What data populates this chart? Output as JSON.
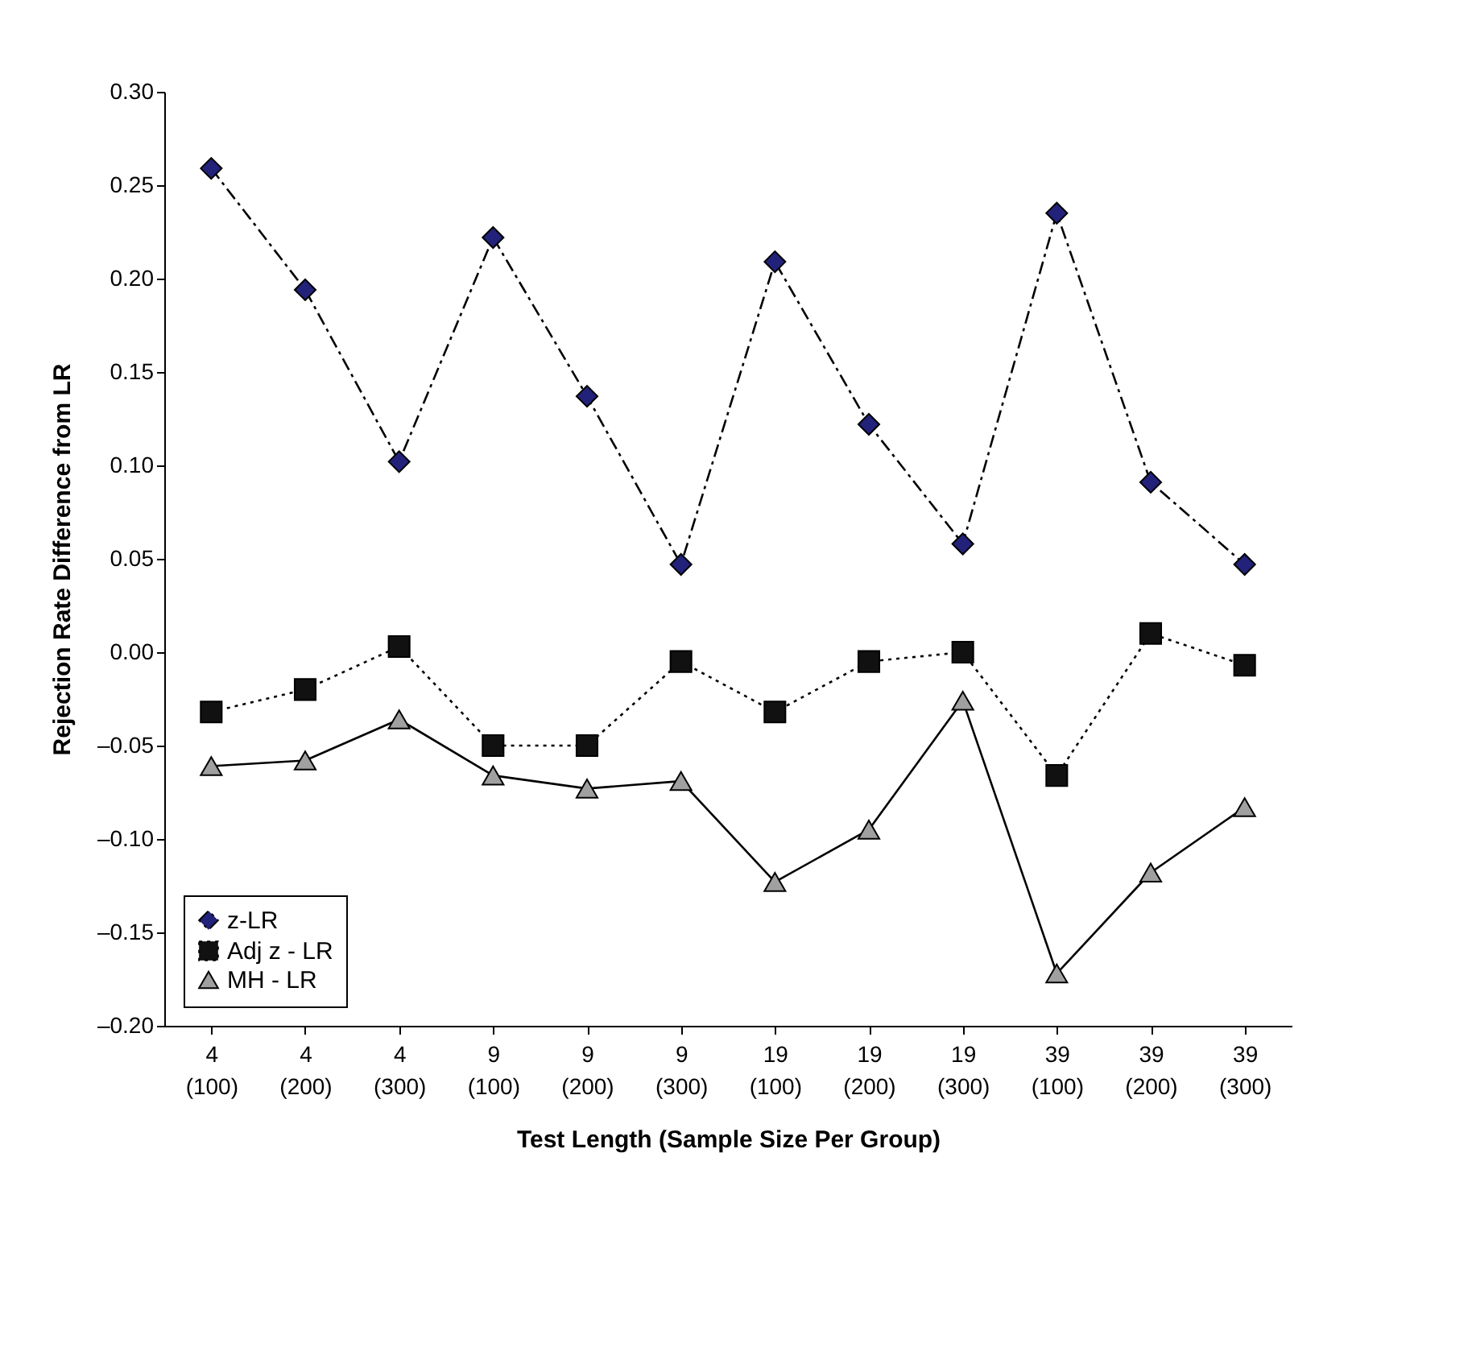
{
  "chart_data": {
    "type": "line",
    "xlabel": "Test Length (Sample Size Per Group)",
    "ylabel": "Rejection Rate Difference from LR",
    "categories": [
      "4\n(100)",
      "4\n(200)",
      "4\n(300)",
      "9\n(100)",
      "9\n(200)",
      "9\n(300)",
      "19\n(100)",
      "19\n(200)",
      "19\n(300)",
      "39\n(100)",
      "39\n(200)",
      "39\n(300)"
    ],
    "series": [
      {
        "name": "z-LR",
        "color": "#22227a",
        "marker": "diamond",
        "line_style": "dashed",
        "values": [
          0.259,
          0.194,
          0.102,
          0.222,
          0.137,
          0.047,
          0.209,
          0.122,
          0.058,
          0.235,
          0.091,
          0.047
        ]
      },
      {
        "name": "Adj z - LR",
        "color": "#111111",
        "marker": "square",
        "line_style": "dotted",
        "values": [
          -0.032,
          -0.02,
          0.003,
          -0.05,
          -0.05,
          -0.005,
          -0.032,
          -0.005,
          0.0,
          -0.066,
          0.01,
          -0.007
        ]
      },
      {
        "name": "MH - LR",
        "color": "#a0a0a0",
        "marker": "triangle",
        "line_style": "solid",
        "values": [
          -0.061,
          -0.058,
          -0.036,
          -0.066,
          -0.073,
          -0.069,
          -0.123,
          -0.095,
          -0.026,
          -0.172,
          -0.118,
          -0.083
        ]
      }
    ],
    "ylim": [
      -0.2,
      0.3
    ],
    "yticks": [
      {
        "value": -0.2,
        "label": "–0.20"
      },
      {
        "value": -0.15,
        "label": "–0.15"
      },
      {
        "value": -0.1,
        "label": "–0.10"
      },
      {
        "value": -0.05,
        "label": "–0.05"
      },
      {
        "value": 0,
        "label": "0.00"
      },
      {
        "value": 0.05,
        "label": "0.05"
      },
      {
        "value": 0.1,
        "label": "0.10"
      },
      {
        "value": 0.15,
        "label": "0.15"
      },
      {
        "value": 0.2,
        "label": "0.20"
      },
      {
        "value": 0.25,
        "label": "0.25"
      },
      {
        "value": 0.3,
        "label": "0.30"
      }
    ],
    "grid": false,
    "legend": "bottom left"
  }
}
